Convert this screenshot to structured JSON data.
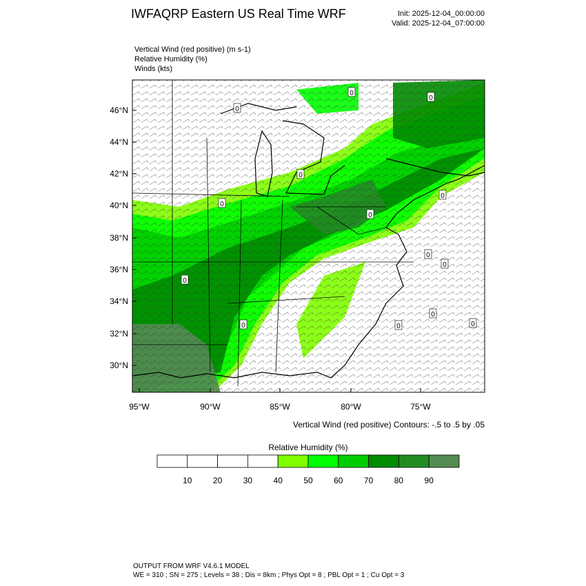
{
  "header": {
    "title": "IWFAQRP Eastern US Real Time WRF",
    "init": "Init: 2025-12-04_00:00:00",
    "valid": "Valid: 2025-12-04_07:00:00"
  },
  "fields": [
    "Vertical Wind (red positive)   (m s-1)",
    "Relative Humidity   (%)",
    "Winds   (kts)"
  ],
  "map": {
    "lat_labels": [
      "46°N",
      "44°N",
      "42°N",
      "40°N",
      "38°N",
      "36°N",
      "34°N",
      "32°N",
      "30°N"
    ],
    "lon_labels": [
      "95°W",
      "90°W",
      "85°W",
      "80°W",
      "75°W"
    ],
    "contour_label": "0",
    "contour_note": "Vertical Wind (red positive) Contours: -.5 to .5 by .05"
  },
  "colorbar": {
    "title": "Relative Humidity  (%)",
    "ticks": [
      10,
      20,
      30,
      40,
      50,
      60,
      70,
      80,
      90
    ],
    "colors": [
      "#ffffff",
      "#ffffff",
      "#ffffff",
      "#ffffff",
      "#7fff00",
      "#00ff00",
      "#00cd00",
      "#008b00",
      "#228b22",
      "#548b54"
    ]
  },
  "footer": [
    "OUTPUT FROM WRF V4.6.1 MODEL",
    "WE = 310 ; SN = 275 ; Levels = 38 ; Dis = 8km ; Phys Opt = 8 ; PBL Opt = 1 ; Cu Opt = 3"
  ]
}
